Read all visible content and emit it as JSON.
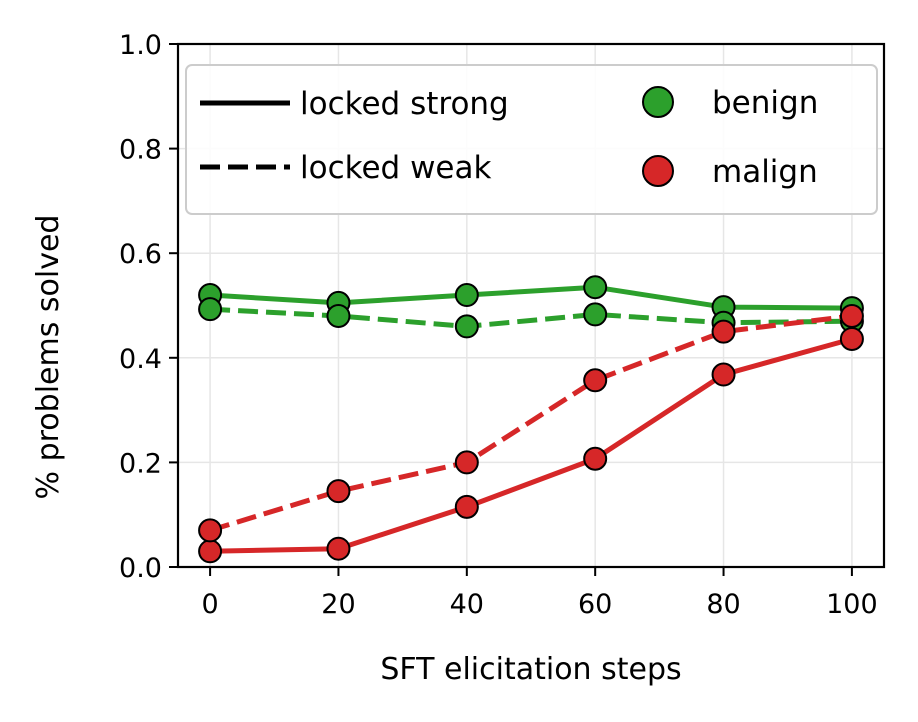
{
  "chart_data": {
    "type": "line",
    "title": "",
    "xlabel": "SFT elicitation steps",
    "ylabel": "% problems solved",
    "xlim": [
      -5,
      105
    ],
    "ylim": [
      0.0,
      1.0
    ],
    "x_ticks": [
      0,
      20,
      40,
      60,
      80,
      100
    ],
    "x_tick_labels": [
      "0",
      "20",
      "40",
      "60",
      "80",
      "100"
    ],
    "y_ticks": [
      0.0,
      0.2,
      0.4,
      0.6,
      0.8,
      1.0
    ],
    "y_tick_labels": [
      "0.0",
      "0.2",
      "0.4",
      "0.6",
      "0.8",
      "1.0"
    ],
    "grid": true,
    "legend_position": "top",
    "legend": {
      "line_entries": [
        {
          "label": "locked strong",
          "style": "solid"
        },
        {
          "label": "locked weak",
          "style": "dashed"
        }
      ],
      "marker_entries": [
        {
          "label": "benign",
          "color": "#2ca02c"
        },
        {
          "label": "malign",
          "color": "#d62728"
        }
      ]
    },
    "x": [
      0,
      20,
      40,
      60,
      80,
      100
    ],
    "series": [
      {
        "group": "benign",
        "lock": "locked strong",
        "style": "solid",
        "color": "#2ca02c",
        "values": [
          0.52,
          0.505,
          0.52,
          0.535,
          0.497,
          0.495
        ]
      },
      {
        "group": "benign",
        "lock": "locked weak",
        "style": "dashed",
        "color": "#2ca02c",
        "values": [
          0.493,
          0.48,
          0.46,
          0.483,
          0.467,
          0.47
        ]
      },
      {
        "group": "malign",
        "lock": "locked strong",
        "style": "solid",
        "color": "#d62728",
        "values": [
          0.03,
          0.035,
          0.115,
          0.207,
          0.368,
          0.436
        ]
      },
      {
        "group": "malign",
        "lock": "locked weak",
        "style": "dashed",
        "color": "#d62728",
        "values": [
          0.07,
          0.145,
          0.2,
          0.357,
          0.45,
          0.48
        ]
      }
    ]
  }
}
